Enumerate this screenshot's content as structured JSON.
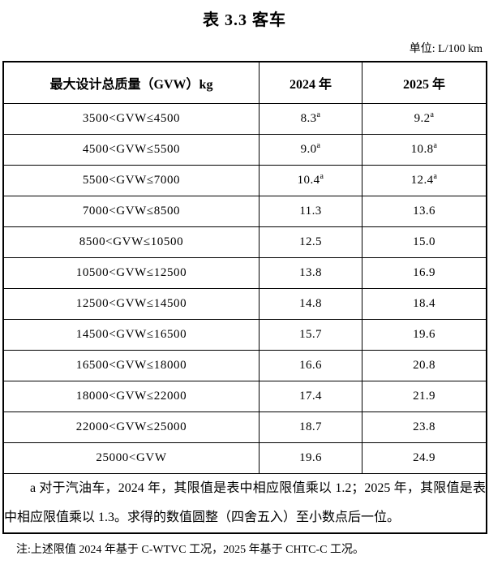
{
  "page": {
    "title": "表 3.3 客车",
    "unit_label": "单位: L/100 km",
    "bottom_note": "注:上述限值 2024 年基于 C-WTVC 工况，2025 年基于 CHTC-C 工况。"
  },
  "table": {
    "headers": [
      "最大设计总质量（GVW）kg",
      "2024 年",
      "2025 年"
    ],
    "rows": [
      {
        "range": "3500<GVW≤4500",
        "v2024": "8.3",
        "sup2024": "a",
        "v2025": "9.2",
        "sup2025": "a"
      },
      {
        "range": "4500<GVW≤5500",
        "v2024": "9.0",
        "sup2024": "a",
        "v2025": "10.8",
        "sup2025": "a"
      },
      {
        "range": "5500<GVW≤7000",
        "v2024": "10.4",
        "sup2024": "a",
        "v2025": "12.4",
        "sup2025": "a"
      },
      {
        "range": "7000<GVW≤8500",
        "v2024": "11.3",
        "sup2024": "",
        "v2025": "13.6",
        "sup2025": ""
      },
      {
        "range": "8500<GVW≤10500",
        "v2024": "12.5",
        "sup2024": "",
        "v2025": "15.0",
        "sup2025": ""
      },
      {
        "range": "10500<GVW≤12500",
        "v2024": "13.8",
        "sup2024": "",
        "v2025": "16.9",
        "sup2025": ""
      },
      {
        "range": "12500<GVW≤14500",
        "v2024": "14.8",
        "sup2024": "",
        "v2025": "18.4",
        "sup2025": ""
      },
      {
        "range": "14500<GVW≤16500",
        "v2024": "15.7",
        "sup2024": "",
        "v2025": "19.6",
        "sup2025": ""
      },
      {
        "range": "16500<GVW≤18000",
        "v2024": "16.6",
        "sup2024": "",
        "v2025": "20.8",
        "sup2025": ""
      },
      {
        "range": "18000<GVW≤22000",
        "v2024": "17.4",
        "sup2024": "",
        "v2025": "21.9",
        "sup2025": ""
      },
      {
        "range": "22000<GVW≤25000",
        "v2024": "18.7",
        "sup2024": "",
        "v2025": "23.8",
        "sup2025": ""
      },
      {
        "range": "25000<GVW",
        "v2024": "19.6",
        "sup2024": "",
        "v2025": "24.9",
        "sup2025": ""
      }
    ],
    "footnote": "a 对于汽油车，2024 年，其限值是表中相应限值乘以 1.2；2025 年，其限值是表中相应限值乘以 1.3。求得的数值圆整（四舍五入）至小数点后一位。"
  }
}
